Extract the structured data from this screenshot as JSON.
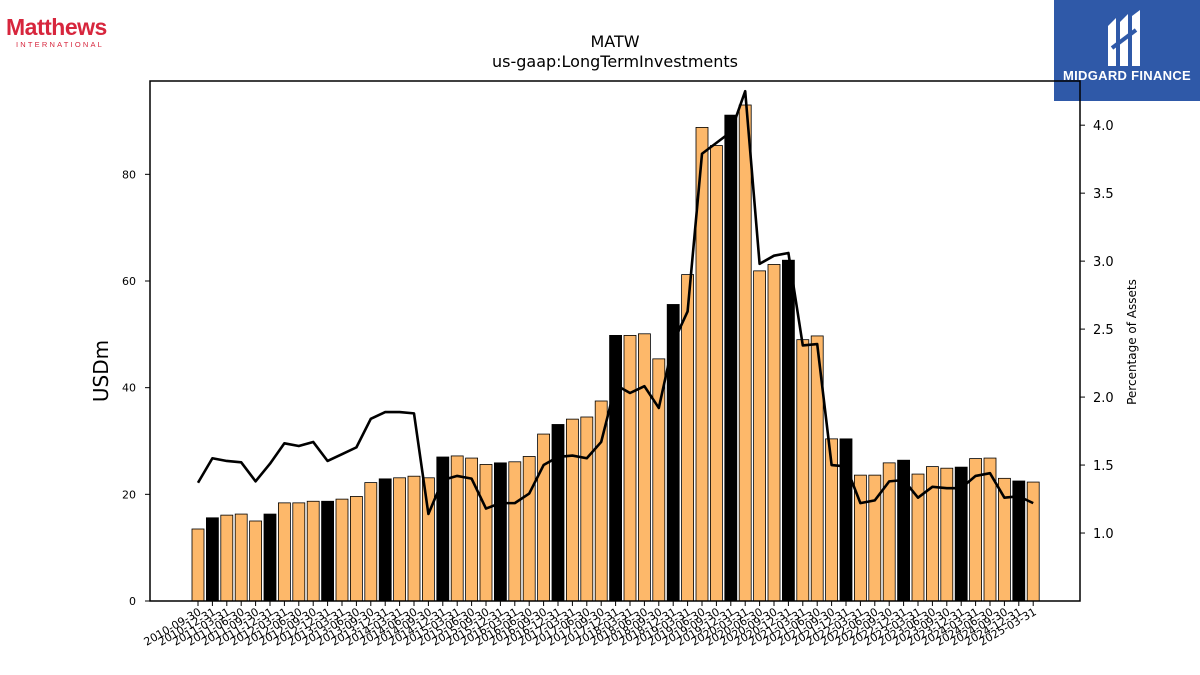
{
  "branding": {
    "left_logo_name": "Matthews",
    "left_logo_sub": "INTERNATIONAL",
    "right_logo_name": "MIDGARD FINANCE",
    "right_logo_bg": "#2f59a8"
  },
  "header": {
    "title": "MATW",
    "subtitle": "us-gaap:LongTermInvestments"
  },
  "chart_data": {
    "type": "bar",
    "title": "MATW",
    "subtitle": "us-gaap:LongTermInvestments",
    "xlabel": "",
    "ylabel": "USDm",
    "y2label": "Percentage of Assets",
    "ylim": [
      0,
      97.5
    ],
    "y2lim": [
      0.5,
      4.325
    ],
    "yticks": [
      0,
      20,
      40,
      60,
      80
    ],
    "y2ticks": [
      1.0,
      1.5,
      2.0,
      2.5,
      3.0,
      3.5,
      4.0
    ],
    "grid": false,
    "colors": {
      "quarter_bar": "#fdb86a",
      "fiscal_year_end_bar": "#000000",
      "line": "#000000"
    },
    "categories": [
      "2010-09-30",
      "2010-12-31",
      "2011-03-31",
      "2011-06-30",
      "2011-09-30",
      "2011-12-31",
      "2012-03-31",
      "2012-06-30",
      "2012-09-30",
      "2012-12-31",
      "2013-03-31",
      "2013-06-30",
      "2013-09-30",
      "2013-12-31",
      "2014-03-31",
      "2014-06-30",
      "2014-09-30",
      "2014-12-31",
      "2015-03-31",
      "2015-06-30",
      "2015-09-30",
      "2015-12-31",
      "2016-03-31",
      "2016-06-30",
      "2016-09-30",
      "2016-12-31",
      "2017-03-31",
      "2017-06-30",
      "2017-09-30",
      "2017-12-31",
      "2018-03-31",
      "2018-06-30",
      "2018-09-30",
      "2018-12-31",
      "2019-03-31",
      "2019-06-30",
      "2019-09-30",
      "2019-12-31",
      "2020-03-31",
      "2020-06-30",
      "2020-09-30",
      "2020-12-31",
      "2021-03-31",
      "2021-06-30",
      "2021-09-30",
      "2021-12-31",
      "2022-03-31",
      "2022-06-30",
      "2022-09-30",
      "2022-12-31",
      "2023-03-31",
      "2023-06-30",
      "2023-09-30",
      "2023-12-31",
      "2024-03-31",
      "2024-06-30",
      "2024-09-30",
      "2024-12-31",
      "2025-03-31"
    ],
    "series": [
      {
        "type": "bar",
        "values": [
          13.5,
          15.6,
          16.1,
          16.3,
          15.0,
          16.3,
          18.4,
          18.4,
          18.7,
          18.7,
          19.1,
          19.6,
          22.2,
          22.9,
          23.1,
          23.4,
          23.1,
          27.0,
          27.2,
          26.8,
          25.6,
          25.9,
          26.1,
          27.1,
          31.3,
          33.1,
          34.1,
          34.5,
          37.5,
          49.8,
          49.8,
          50.1,
          45.4,
          55.6,
          61.2,
          88.8,
          85.4,
          91.1,
          93.0,
          61.9,
          63.1,
          63.9,
          49.0,
          49.7,
          30.4,
          30.4,
          23.6,
          23.6,
          25.9,
          26.4,
          23.8,
          25.2,
          24.9,
          25.1,
          26.7,
          26.8,
          23.0,
          22.5,
          22.3
        ],
        "fiscal_year_end": [
          false,
          true,
          false,
          false,
          false,
          true,
          false,
          false,
          false,
          true,
          false,
          false,
          false,
          true,
          false,
          false,
          false,
          true,
          false,
          false,
          false,
          true,
          false,
          false,
          false,
          true,
          false,
          false,
          false,
          true,
          false,
          false,
          false,
          true,
          false,
          false,
          false,
          true,
          false,
          false,
          false,
          true,
          false,
          false,
          false,
          true,
          false,
          false,
          false,
          true,
          false,
          false,
          false,
          true,
          false,
          false,
          false,
          true,
          false
        ]
      },
      {
        "type": "line",
        "axis": "right",
        "values": [
          1.37,
          1.55,
          1.53,
          1.52,
          1.38,
          1.51,
          1.66,
          1.64,
          1.67,
          1.53,
          1.58,
          1.63,
          1.84,
          1.89,
          1.89,
          1.88,
          1.14,
          1.39,
          1.42,
          1.4,
          1.18,
          1.22,
          1.22,
          1.29,
          1.5,
          1.56,
          1.57,
          1.55,
          1.67,
          2.09,
          2.03,
          2.08,
          1.92,
          2.4,
          2.63,
          3.79,
          3.87,
          3.95,
          4.25,
          2.98,
          3.04,
          3.06,
          2.38,
          2.39,
          1.5,
          1.49,
          1.22,
          1.24,
          1.38,
          1.39,
          1.26,
          1.34,
          1.33,
          1.33,
          1.42,
          1.44,
          1.26,
          1.27,
          1.22
        ]
      }
    ]
  }
}
